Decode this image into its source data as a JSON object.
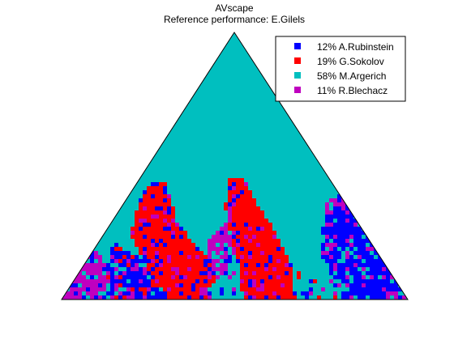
{
  "chart_data": {
    "type": "ternary-map",
    "title": "AVscape",
    "subtitle": "Reference performance: E.Gilels",
    "legend_position": "top-right",
    "series": [
      {
        "name": "A.Rubinstein",
        "share_pct": 12,
        "label": "12% A.Rubinstein",
        "color": "#0000ff"
      },
      {
        "name": "G.Sokolov",
        "share_pct": 19,
        "label": "19% G.Sokolov",
        "color": "#ff0000"
      },
      {
        "name": "M.Argerich",
        "share_pct": 58,
        "label": "58% M.Argerich",
        "color": "#00bfbf"
      },
      {
        "name": "R.Blechacz",
        "share_pct": 11,
        "label": "11% R.Blechacz",
        "color": "#bf00bf"
      }
    ]
  }
}
